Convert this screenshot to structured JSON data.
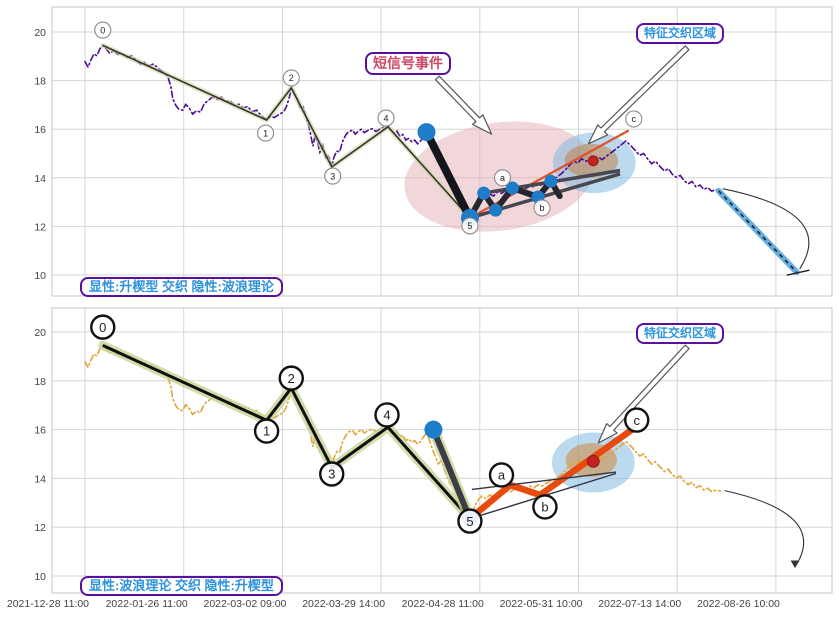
{
  "annotations": {
    "sms_label": "短信号事件",
    "feature_label_top": "特征交织区域",
    "feature_label_bottom": "特征交织区域"
  },
  "chart_data": {
    "type": "line",
    "x_tick_labels": [
      "2021-12-28 11:00",
      "2022-01-26 11:00",
      "2022-03-02 09:00",
      "2022-03-29 14:00",
      "2022-04-28 11:00",
      "2022-05-31 10:00",
      "2022-07-13 14:00",
      "2022-08-26 10:00"
    ],
    "y_ticks": [
      20,
      18,
      16,
      14,
      12,
      10
    ],
    "ylim": [
      9.2,
      21.0
    ],
    "grid": true,
    "waves": {
      "0": 19.45,
      "1": 16.38,
      "2": 17.7,
      "3": 14.45,
      "4": 16.1,
      "5": 12.35,
      "a": 13.73,
      "b": 13.32,
      "c": 16.0
    },
    "price_series": [
      [
        0.0,
        18.78
      ],
      [
        0.03,
        18.55
      ],
      [
        0.06,
        18.85
      ],
      [
        0.09,
        19.1
      ],
      [
        0.12,
        19.02
      ],
      [
        0.15,
        19.3
      ],
      [
        0.18,
        19.45
      ],
      [
        0.22,
        19.28
      ],
      [
        0.25,
        19.12
      ],
      [
        0.29,
        19.22
      ],
      [
        0.33,
        19.08
      ],
      [
        0.37,
        19.15
      ],
      [
        0.43,
        18.95
      ],
      [
        0.47,
        19.02
      ],
      [
        0.52,
        18.85
      ],
      [
        0.56,
        18.67
      ],
      [
        0.6,
        18.76
      ],
      [
        0.65,
        18.6
      ],
      [
        0.69,
        18.68
      ],
      [
        0.73,
        18.55
      ],
      [
        0.77,
        18.42
      ],
      [
        0.81,
        18.28
      ],
      [
        0.84,
        18.15
      ],
      [
        0.87,
        17.75
      ],
      [
        0.89,
        17.25
      ],
      [
        0.92,
        16.98
      ],
      [
        0.95,
        16.82
      ],
      [
        0.99,
        16.78
      ],
      [
        1.02,
        17.02
      ],
      [
        1.06,
        16.85
      ],
      [
        1.09,
        16.62
      ],
      [
        1.13,
        16.76
      ],
      [
        1.17,
        16.7
      ],
      [
        1.21,
        17.06
      ],
      [
        1.25,
        17.18
      ],
      [
        1.29,
        17.32
      ],
      [
        1.34,
        17.22
      ],
      [
        1.38,
        17.32
      ],
      [
        1.42,
        17.12
      ],
      [
        1.47,
        17.18
      ],
      [
        1.51,
        16.98
      ],
      [
        1.56,
        17.03
      ],
      [
        1.6,
        16.88
      ],
      [
        1.65,
        16.93
      ],
      [
        1.69,
        16.72
      ],
      [
        1.74,
        16.78
      ],
      [
        1.78,
        16.58
      ],
      [
        1.82,
        16.45
      ],
      [
        1.84,
        16.38
      ],
      [
        1.88,
        16.52
      ],
      [
        1.92,
        16.48
      ],
      [
        1.97,
        16.62
      ],
      [
        2.01,
        16.7
      ],
      [
        2.04,
        16.92
      ],
      [
        2.07,
        17.3
      ],
      [
        2.09,
        17.7
      ],
      [
        2.12,
        17.48
      ],
      [
        2.15,
        17.28
      ],
      [
        2.18,
        16.9
      ],
      [
        2.21,
        16.96
      ],
      [
        2.24,
        16.45
      ],
      [
        2.27,
        16.1
      ],
      [
        2.29,
        15.7
      ],
      [
        2.31,
        15.3
      ],
      [
        2.33,
        15.72
      ],
      [
        2.36,
        15.4
      ],
      [
        2.38,
        15.05
      ],
      [
        2.41,
        15.33
      ],
      [
        2.44,
        14.82
      ],
      [
        2.47,
        14.93
      ],
      [
        2.5,
        14.45
      ],
      [
        2.52,
        14.82
      ],
      [
        2.55,
        15.1
      ],
      [
        2.58,
        15.06
      ],
      [
        2.61,
        15.5
      ],
      [
        2.64,
        15.75
      ],
      [
        2.67,
        15.9
      ],
      [
        2.71,
        15.96
      ],
      [
        2.74,
        15.8
      ],
      [
        2.77,
        15.92
      ],
      [
        2.8,
        16.0
      ],
      [
        2.83,
        15.86
      ],
      [
        2.87,
        15.96
      ],
      [
        2.91,
        16.02
      ],
      [
        2.95,
        15.9
      ],
      [
        2.99,
        16.02
      ],
      [
        3.03,
        16.08
      ],
      [
        3.07,
        16.12
      ],
      [
        3.1,
        15.95
      ],
      [
        3.13,
        15.85
      ],
      [
        3.16,
        15.92
      ],
      [
        3.19,
        15.7
      ],
      [
        3.22,
        15.78
      ],
      [
        3.25,
        15.55
      ],
      [
        3.28,
        15.62
      ],
      [
        3.31,
        15.48
      ],
      [
        3.34,
        15.55
      ],
      [
        3.37,
        15.4
      ],
      [
        3.4,
        15.52
      ],
      [
        3.43,
        15.7
      ],
      [
        3.46,
        15.88
      ],
      [
        3.49,
        15.55
      ],
      [
        3.52,
        15.2
      ],
      [
        3.55,
        14.9
      ],
      [
        3.58,
        14.6
      ],
      [
        3.61,
        14.72
      ],
      [
        3.64,
        14.35
      ],
      [
        3.67,
        14.05
      ],
      [
        3.7,
        13.75
      ],
      [
        3.73,
        13.9
      ],
      [
        3.76,
        13.45
      ],
      [
        3.79,
        13.05
      ],
      [
        3.81,
        12.85
      ],
      [
        3.83,
        13.1
      ],
      [
        3.86,
        12.7
      ],
      [
        3.88,
        12.5
      ],
      [
        3.9,
        12.35
      ],
      [
        3.93,
        12.65
      ],
      [
        3.96,
        12.95
      ],
      [
        3.99,
        13.15
      ],
      [
        4.02,
        13.28
      ],
      [
        4.06,
        13.18
      ],
      [
        4.1,
        13.32
      ],
      [
        4.14,
        13.25
      ],
      [
        4.18,
        13.42
      ],
      [
        4.22,
        13.36
      ],
      [
        4.27,
        13.5
      ],
      [
        4.31,
        13.44
      ],
      [
        4.35,
        13.56
      ],
      [
        4.39,
        13.5
      ],
      [
        4.43,
        13.62
      ],
      [
        4.47,
        13.56
      ],
      [
        4.51,
        13.68
      ],
      [
        4.55,
        13.62
      ],
      [
        4.59,
        13.74
      ],
      [
        4.63,
        13.68
      ],
      [
        4.67,
        13.8
      ],
      [
        4.71,
        13.88
      ],
      [
        4.75,
        13.95
      ],
      [
        4.79,
        14.05
      ],
      [
        4.83,
        14.18
      ],
      [
        4.87,
        14.35
      ],
      [
        4.91,
        14.52
      ],
      [
        4.95,
        14.7
      ],
      [
        4.99,
        14.6
      ],
      [
        5.03,
        14.78
      ],
      [
        5.08,
        14.68
      ],
      [
        5.12,
        14.82
      ],
      [
        5.16,
        14.7
      ],
      [
        5.2,
        14.85
      ],
      [
        5.24,
        14.75
      ],
      [
        5.28,
        14.88
      ],
      [
        5.32,
        15.0
      ],
      [
        5.36,
        15.12
      ],
      [
        5.4,
        15.25
      ],
      [
        5.44,
        15.38
      ],
      [
        5.48,
        15.52
      ],
      [
        5.51,
        15.4
      ],
      [
        5.54,
        15.28
      ],
      [
        5.58,
        15.1
      ],
      [
        5.62,
        14.92
      ],
      [
        5.66,
        15.0
      ],
      [
        5.7,
        14.78
      ],
      [
        5.74,
        14.58
      ],
      [
        5.78,
        14.68
      ],
      [
        5.83,
        14.45
      ],
      [
        5.87,
        14.28
      ],
      [
        5.91,
        14.38
      ],
      [
        5.95,
        14.15
      ],
      [
        5.99,
        14.02
      ],
      [
        6.03,
        14.1
      ],
      [
        6.07,
        13.88
      ],
      [
        6.11,
        13.75
      ],
      [
        6.15,
        13.85
      ],
      [
        6.19,
        13.62
      ],
      [
        6.23,
        13.7
      ],
      [
        6.27,
        13.52
      ],
      [
        6.31,
        13.6
      ],
      [
        6.35,
        13.45
      ],
      [
        6.39,
        13.52
      ],
      [
        6.44,
        13.48
      ]
    ],
    "panels": [
      {
        "id": "top",
        "caption": "显性:升楔型 交织 隐性:波浪理论",
        "price_color": "#4d0b90",
        "wave_line": {
          "points": [
            [
              0.18,
              19.45
            ],
            [
              1.84,
              16.38
            ],
            [
              2.09,
              17.7
            ],
            [
              2.5,
              14.45
            ],
            [
              3.07,
              16.1
            ],
            [
              3.9,
              12.35
            ]
          ],
          "width": 1.6,
          "halo_width": 5,
          "halo_color": "rgba(205,215,165,0.65)",
          "color": "#35352c"
        },
        "marker_r": 8,
        "marker_stroke": "#8a8a8a",
        "marker_stroke_w": 1.1,
        "marker_font": 9,
        "markers": [
          {
            "label": "0",
            "u": 0.18,
            "v": 20.08
          },
          {
            "label": "1",
            "u": 1.83,
            "v": 15.84
          },
          {
            "label": "2",
            "u": 2.09,
            "v": 18.11
          },
          {
            "label": "3",
            "u": 2.51,
            "v": 14.07
          },
          {
            "label": "4",
            "u": 3.05,
            "v": 16.46
          },
          {
            "label": "5",
            "u": 3.9,
            "v": 12.02
          },
          {
            "label": "a",
            "u": 4.23,
            "v": 14.0
          },
          {
            "label": "b",
            "u": 4.63,
            "v": 12.76
          },
          {
            "label": "c",
            "u": 5.56,
            "v": 16.42
          }
        ],
        "abc_line": {
          "points": [
            [
              3.9,
              12.35
            ],
            [
              5.5,
              15.93
            ]
          ],
          "color": "#e0512e",
          "width": 2.2
        },
        "drop_line": {
          "points": [
            [
              3.46,
              15.88
            ],
            [
              3.9,
              12.35
            ]
          ],
          "width": 8,
          "color": "#15151d",
          "halo": false
        },
        "wedge": {
          "upper": [
            [
              4.04,
              13.37
            ],
            [
              5.42,
              14.3
            ]
          ],
          "lower": [
            [
              3.9,
              12.35
            ],
            [
              5.42,
              14.16
            ]
          ],
          "width": 3.5,
          "color": "#47474f",
          "zigzag": [
            [
              3.9,
              12.35
            ],
            [
              4.04,
              13.37
            ],
            [
              4.16,
              12.67
            ],
            [
              4.33,
              13.58
            ],
            [
              4.59,
              13.21
            ],
            [
              4.72,
              13.86
            ],
            [
              4.81,
              13.25
            ]
          ],
          "zigzag_width": 6,
          "zigzag_color": "#26262e"
        },
        "dots": [
          [
            3.46,
            15.88,
            9
          ],
          [
            3.9,
            12.35,
            9
          ],
          [
            4.04,
            13.37,
            6.5
          ],
          [
            4.16,
            12.67,
            6.5
          ],
          [
            4.33,
            13.58,
            6.5
          ],
          [
            4.59,
            13.21,
            6.5
          ],
          [
            4.72,
            13.86,
            6.5
          ]
        ],
        "dot_color": "#1e7cc8",
        "red_dot": [
          5.15,
          14.7,
          5
        ],
        "ellipses": [
          {
            "name": "sms-ellipse",
            "cx": 4.2,
            "cy": 14.05,
            "rx": 0.97,
            "ry": 2.22,
            "rot": -8,
            "fill": "rgba(228,173,181,0.5)"
          },
          {
            "name": "feature-ellipse-outer",
            "cx": 5.16,
            "cy": 14.62,
            "rx": 0.42,
            "ry": 1.25,
            "rot": 0,
            "fill": "rgba(122,182,224,0.5)"
          },
          {
            "name": "feature-ellipse-inner",
            "cx": 5.13,
            "cy": 14.7,
            "rx": 0.27,
            "ry": 0.7,
            "rot": 0,
            "fill": "rgba(188,132,72,0.55)"
          }
        ],
        "arrows": [
          {
            "name": "sms-callout-arrow",
            "from": [
              3.57,
              18.11
            ],
            "to": [
              4.12,
              15.8
            ]
          },
          {
            "name": "feature-callout-arrow",
            "from": [
              6.1,
              19.35
            ],
            "to": [
              5.1,
              15.4
            ]
          }
        ],
        "projection": {
          "line": [
            [
              6.42,
              13.46
            ],
            [
              7.21,
              10.12
            ]
          ],
          "cap": [
            [
              7.11,
              9.99
            ],
            [
              7.34,
              10.2
            ]
          ],
          "color": "#67aede",
          "dash_color": "#16213a"
        },
        "curve": {
          "from": [
            6.46,
            13.55
          ],
          "ctrl": [
            7.62,
            12.6
          ],
          "to": [
            7.24,
            10.25
          ],
          "arrowhead": false
        }
      },
      {
        "id": "bottom",
        "caption": "显性:波浪理论 交织 隐性:升楔型",
        "price_color": "#e2a438",
        "wave_line": {
          "points": [
            [
              0.18,
              19.45
            ],
            [
              1.84,
              16.38
            ],
            [
              2.09,
              17.7
            ],
            [
              2.5,
              14.45
            ],
            [
              3.07,
              16.1
            ],
            [
              3.9,
              12.35
            ]
          ],
          "width": 3,
          "halo_width": 9,
          "halo_color": "rgba(200,213,150,0.8)",
          "color": "#0f0f0f"
        },
        "marker_r": 11.5,
        "marker_stroke": "#111111",
        "marker_stroke_w": 2.4,
        "marker_font": 13,
        "markers": [
          {
            "label": "0",
            "u": 0.18,
            "v": 20.2
          },
          {
            "label": "1",
            "u": 1.84,
            "v": 15.94
          },
          {
            "label": "2",
            "u": 2.09,
            "v": 18.11
          },
          {
            "label": "3",
            "u": 2.5,
            "v": 14.18
          },
          {
            "label": "4",
            "u": 3.06,
            "v": 16.6
          },
          {
            "label": "5",
            "u": 3.9,
            "v": 12.25
          },
          {
            "label": "a",
            "u": 4.22,
            "v": 14.14
          },
          {
            "label": "b",
            "u": 4.66,
            "v": 12.83
          },
          {
            "label": "c",
            "u": 5.59,
            "v": 16.39
          }
        ],
        "abc_line": {
          "points": [
            [
              3.9,
              12.35
            ],
            [
              4.31,
              13.73
            ],
            [
              4.61,
              13.32
            ],
            [
              5.55,
              16.02
            ]
          ],
          "color": "#e8490c",
          "width": 6.5
        },
        "drop_line": {
          "points": [
            [
              3.53,
              16.0
            ],
            [
              3.9,
              12.35
            ]
          ],
          "width": 6,
          "color": "#3c3c46",
          "halo": true
        },
        "wedge": {
          "upper": [
            [
              3.92,
              13.55
            ],
            [
              5.38,
              14.26
            ]
          ],
          "lower": [
            [
              3.9,
              12.35
            ],
            [
              5.38,
              14.2
            ]
          ],
          "width": 1.4,
          "color": "#333340",
          "zigzag": null,
          "zigzag_width": 0,
          "zigzag_color": "#333333"
        },
        "dots": [
          [
            3.53,
            16.0,
            9
          ],
          [
            3.9,
            12.35,
            8
          ]
        ],
        "dot_color": "#1e7cc8",
        "red_dot": [
          5.15,
          14.7,
          6
        ],
        "ellipses": [
          {
            "name": "feature-ellipse-outer",
            "cx": 5.15,
            "cy": 14.65,
            "rx": 0.42,
            "ry": 1.23,
            "rot": 0,
            "fill": "rgba(122,182,224,0.5)"
          },
          {
            "name": "feature-ellipse-inner",
            "cx": 5.13,
            "cy": 14.75,
            "rx": 0.26,
            "ry": 0.7,
            "rot": 0,
            "fill": "rgba(205,138,60,0.55)"
          }
        ],
        "arrows": [
          {
            "name": "feature-callout-arrow",
            "from": [
              6.1,
              19.39
            ],
            "to": [
              5.2,
              15.45
            ]
          }
        ],
        "projection": null,
        "curve": {
          "from": [
            6.48,
            13.5
          ],
          "ctrl": [
            7.55,
            12.55
          ],
          "to": [
            7.19,
            10.35
          ],
          "arrowhead": true
        }
      }
    ]
  }
}
